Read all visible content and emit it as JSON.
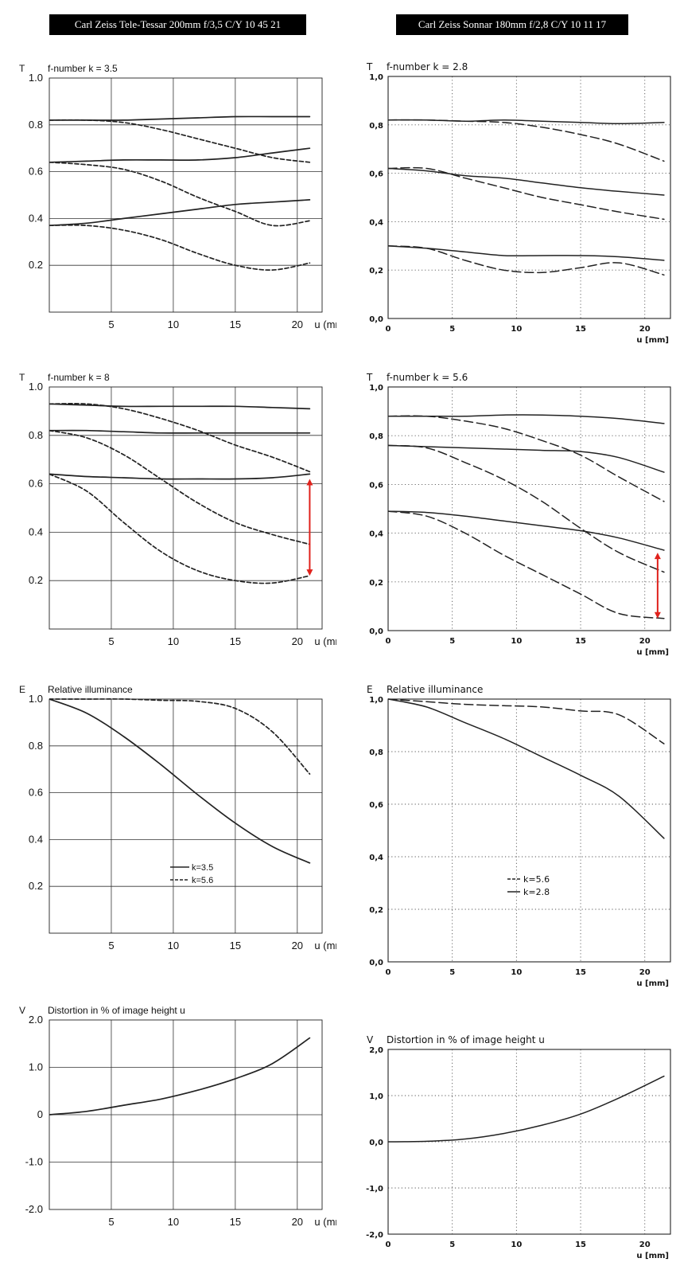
{
  "lens_titles": {
    "left": "Carl Zeiss Tele-Tessar 200mm f/3,5  C/Y  10 45 21",
    "right": "Carl Zeiss Sonnar 180mm f/2,8  C/Y  10 11 17"
  },
  "colors": {
    "line": "#222222",
    "grid_left": "#333333",
    "grid_right": "#555555",
    "annotation": "#e0221c"
  },
  "chart_data": [
    {
      "id": "mtf-tessar-k3.5",
      "type": "line",
      "symbol": "T",
      "title": "f-number k = 3.5",
      "xlabel": "u (mm)",
      "xlim": [
        0,
        22
      ],
      "ylim": [
        0,
        1.0
      ],
      "grid": "solid",
      "xticks": [
        "5",
        "10",
        "15",
        "20"
      ],
      "yticks": [
        "0.2",
        "0.4",
        "0.6",
        "0.8",
        "1.0"
      ],
      "series": [
        {
          "style": "solid",
          "x": [
            0,
            3,
            6,
            9,
            12,
            15,
            18,
            21
          ],
          "y": [
            0.82,
            0.82,
            0.82,
            0.825,
            0.83,
            0.835,
            0.835,
            0.835
          ]
        },
        {
          "style": "dashed",
          "x": [
            0,
            3,
            6,
            9,
            12,
            15,
            18,
            21
          ],
          "y": [
            0.82,
            0.82,
            0.81,
            0.78,
            0.74,
            0.7,
            0.66,
            0.64
          ]
        },
        {
          "style": "solid",
          "x": [
            0,
            3,
            6,
            9,
            12,
            15,
            18,
            21
          ],
          "y": [
            0.64,
            0.645,
            0.65,
            0.65,
            0.65,
            0.66,
            0.68,
            0.7
          ]
        },
        {
          "style": "dashed",
          "x": [
            0,
            3,
            6,
            9,
            12,
            15,
            18,
            21
          ],
          "y": [
            0.64,
            0.63,
            0.61,
            0.56,
            0.49,
            0.43,
            0.37,
            0.39
          ]
        },
        {
          "style": "solid",
          "x": [
            0,
            3,
            6,
            9,
            12,
            15,
            18,
            21
          ],
          "y": [
            0.37,
            0.38,
            0.4,
            0.42,
            0.44,
            0.46,
            0.47,
            0.48
          ]
        },
        {
          "style": "dashed",
          "x": [
            0,
            3,
            6,
            9,
            12,
            15,
            18,
            21
          ],
          "y": [
            0.37,
            0.37,
            0.35,
            0.31,
            0.25,
            0.2,
            0.18,
            0.21
          ]
        }
      ]
    },
    {
      "id": "mtf-sonnar-k2.8",
      "type": "line",
      "symbol": "T",
      "title": "f-number k = 2.8",
      "xlabel": "u [mm]",
      "xlim": [
        0,
        22
      ],
      "ylim": [
        0,
        1.0
      ],
      "grid": "dotted",
      "xticks": [
        "0",
        "5",
        "10",
        "15",
        "20"
      ],
      "yticks": [
        "0,0",
        "0,2",
        "0,4",
        "0,6",
        "0,8",
        "1,0"
      ],
      "series": [
        {
          "style": "solid",
          "x": [
            0,
            3,
            6,
            9,
            12,
            15,
            18,
            21.5
          ],
          "y": [
            0.82,
            0.82,
            0.815,
            0.82,
            0.815,
            0.81,
            0.805,
            0.81
          ]
        },
        {
          "style": "dashed",
          "x": [
            0,
            3,
            6,
            9,
            12,
            15,
            18,
            21.5
          ],
          "y": [
            0.82,
            0.82,
            0.815,
            0.81,
            0.79,
            0.76,
            0.72,
            0.65
          ]
        },
        {
          "style": "solid",
          "x": [
            0,
            3,
            6,
            9,
            12,
            15,
            18,
            21.5
          ],
          "y": [
            0.62,
            0.61,
            0.59,
            0.58,
            0.56,
            0.54,
            0.525,
            0.51
          ]
        },
        {
          "style": "dashed",
          "x": [
            0,
            3,
            6,
            9,
            12,
            15,
            18,
            21.5
          ],
          "y": [
            0.62,
            0.62,
            0.58,
            0.54,
            0.5,
            0.47,
            0.44,
            0.41
          ]
        },
        {
          "style": "solid",
          "x": [
            0,
            3,
            6,
            9,
            12,
            15,
            18,
            21.5
          ],
          "y": [
            0.3,
            0.29,
            0.275,
            0.26,
            0.26,
            0.26,
            0.255,
            0.24
          ]
        },
        {
          "style": "dashed",
          "x": [
            0,
            3,
            6,
            9,
            12,
            15,
            18,
            21.5
          ],
          "y": [
            0.3,
            0.29,
            0.24,
            0.2,
            0.19,
            0.21,
            0.23,
            0.18
          ]
        }
      ]
    },
    {
      "id": "mtf-tessar-k8",
      "type": "line",
      "symbol": "T",
      "title": "f-number k = 8",
      "xlabel": "u (mm)",
      "xlim": [
        0,
        22
      ],
      "ylim": [
        0,
        1.0
      ],
      "grid": "solid",
      "xticks": [
        "5",
        "10",
        "15",
        "20"
      ],
      "yticks": [
        "0.2",
        "0.4",
        "0.6",
        "0.8",
        "1.0"
      ],
      "annotation": {
        "x": 21,
        "y_from": 0.62,
        "y_to": 0.22
      },
      "series": [
        {
          "style": "solid",
          "x": [
            0,
            3,
            6,
            9,
            12,
            15,
            18,
            21
          ],
          "y": [
            0.93,
            0.925,
            0.92,
            0.92,
            0.92,
            0.92,
            0.915,
            0.91
          ]
        },
        {
          "style": "dashed",
          "x": [
            0,
            3,
            6,
            9,
            12,
            15,
            18,
            21
          ],
          "y": [
            0.93,
            0.93,
            0.91,
            0.87,
            0.82,
            0.76,
            0.71,
            0.65
          ]
        },
        {
          "style": "solid",
          "x": [
            0,
            3,
            6,
            9,
            12,
            15,
            18,
            21
          ],
          "y": [
            0.82,
            0.82,
            0.815,
            0.81,
            0.81,
            0.81,
            0.81,
            0.81
          ]
        },
        {
          "style": "dashed",
          "x": [
            0,
            3,
            6,
            9,
            12,
            15,
            18,
            21
          ],
          "y": [
            0.82,
            0.79,
            0.72,
            0.62,
            0.52,
            0.44,
            0.39,
            0.35
          ]
        },
        {
          "style": "solid",
          "x": [
            0,
            3,
            6,
            9,
            12,
            15,
            18,
            21
          ],
          "y": [
            0.64,
            0.63,
            0.625,
            0.62,
            0.62,
            0.62,
            0.625,
            0.64
          ]
        },
        {
          "style": "dashed",
          "x": [
            0,
            3,
            6,
            9,
            12,
            15,
            18,
            21
          ],
          "y": [
            0.64,
            0.57,
            0.44,
            0.32,
            0.24,
            0.2,
            0.19,
            0.22
          ]
        }
      ]
    },
    {
      "id": "mtf-sonnar-k5.6",
      "type": "line",
      "symbol": "T",
      "title": "f-number k = 5.6",
      "xlabel": "u [mm]",
      "xlim": [
        0,
        22
      ],
      "ylim": [
        0,
        1.0
      ],
      "grid": "dotted",
      "xticks": [
        "0",
        "5",
        "10",
        "15",
        "20"
      ],
      "yticks": [
        "0,0",
        "0,2",
        "0,4",
        "0,6",
        "0,8",
        "1,0"
      ],
      "annotation": {
        "x": 21,
        "y_from": 0.32,
        "y_to": 0.05
      },
      "series": [
        {
          "style": "solid",
          "x": [
            0,
            3,
            6,
            9,
            12,
            15,
            18,
            21.5
          ],
          "y": [
            0.88,
            0.88,
            0.88,
            0.885,
            0.885,
            0.88,
            0.87,
            0.85
          ]
        },
        {
          "style": "dashed",
          "x": [
            0,
            3,
            6,
            9,
            12,
            15,
            18,
            21.5
          ],
          "y": [
            0.88,
            0.88,
            0.86,
            0.83,
            0.78,
            0.72,
            0.63,
            0.53
          ]
        },
        {
          "style": "solid",
          "x": [
            0,
            3,
            6,
            9,
            12,
            15,
            18,
            21.5
          ],
          "y": [
            0.76,
            0.755,
            0.75,
            0.745,
            0.74,
            0.735,
            0.71,
            0.65
          ]
        },
        {
          "style": "dashed",
          "x": [
            0,
            3,
            6,
            9,
            12,
            15,
            18,
            21.5
          ],
          "y": [
            0.76,
            0.75,
            0.69,
            0.62,
            0.53,
            0.42,
            0.32,
            0.24
          ]
        },
        {
          "style": "solid",
          "x": [
            0,
            3,
            6,
            9,
            12,
            15,
            18,
            21.5
          ],
          "y": [
            0.49,
            0.485,
            0.47,
            0.45,
            0.43,
            0.41,
            0.38,
            0.33
          ]
        },
        {
          "style": "dashed",
          "x": [
            0,
            3,
            6,
            9,
            12,
            15,
            18,
            21.5
          ],
          "y": [
            0.49,
            0.47,
            0.4,
            0.31,
            0.23,
            0.15,
            0.07,
            0.05
          ]
        }
      ]
    },
    {
      "id": "illum-tessar",
      "type": "line",
      "symbol": "E",
      "title": "Relative illuminance",
      "xlabel": "u (mm)",
      "xlim": [
        0,
        22
      ],
      "ylim": [
        0,
        1.0
      ],
      "grid": "solid",
      "xticks": [
        "5",
        "10",
        "15",
        "20"
      ],
      "yticks": [
        "0.2",
        "0.4",
        "0.6",
        "0.8",
        "1.0"
      ],
      "legend": [
        "k=3.5",
        "k=5.6"
      ],
      "series": [
        {
          "name": "k=3.5",
          "style": "solid",
          "x": [
            0,
            3,
            6,
            9,
            12,
            15,
            18,
            21
          ],
          "y": [
            1.0,
            0.94,
            0.84,
            0.72,
            0.59,
            0.47,
            0.37,
            0.3
          ]
        },
        {
          "name": "k=5.6",
          "style": "dashed",
          "x": [
            0,
            3,
            6,
            9,
            12,
            15,
            18,
            21
          ],
          "y": [
            1.0,
            1.0,
            1.0,
            0.995,
            0.99,
            0.96,
            0.86,
            0.68
          ]
        }
      ]
    },
    {
      "id": "illum-sonnar",
      "type": "line",
      "symbol": "E",
      "title": "Relative illuminance",
      "xlabel": "u [mm]",
      "xlim": [
        0,
        22
      ],
      "ylim": [
        0,
        1.0
      ],
      "grid": "dotted",
      "xticks": [
        "0",
        "5",
        "10",
        "15",
        "20"
      ],
      "yticks": [
        "0,0",
        "0,2",
        "0,4",
        "0,6",
        "0,8",
        "1,0"
      ],
      "legend": [
        "k=5.6",
        "k=2.8"
      ],
      "series": [
        {
          "name": "k=5.6",
          "style": "dashed",
          "x": [
            0,
            3,
            6,
            9,
            12,
            15,
            18,
            21.5
          ],
          "y": [
            1.0,
            0.99,
            0.98,
            0.975,
            0.97,
            0.955,
            0.94,
            0.83
          ]
        },
        {
          "name": "k=2.8",
          "style": "solid",
          "x": [
            0,
            3,
            6,
            9,
            12,
            15,
            18,
            21.5
          ],
          "y": [
            1.0,
            0.97,
            0.91,
            0.85,
            0.78,
            0.71,
            0.63,
            0.47
          ]
        }
      ]
    },
    {
      "id": "dist-tessar",
      "type": "line",
      "symbol": "V",
      "title": "Distortion in % of image height u",
      "xlabel": "u (mm)",
      "xlim": [
        0,
        22
      ],
      "ylim": [
        -2.0,
        2.0
      ],
      "grid": "solid",
      "xticks": [
        "5",
        "10",
        "15",
        "20"
      ],
      "yticks": [
        "-2.0",
        "-1.0",
        "0",
        "1.0",
        "2.0"
      ],
      "series": [
        {
          "style": "solid",
          "x": [
            0,
            3,
            6,
            9,
            12,
            15,
            18,
            21
          ],
          "y": [
            0,
            0.07,
            0.2,
            0.33,
            0.52,
            0.76,
            1.08,
            1.62
          ]
        }
      ]
    },
    {
      "id": "dist-sonnar",
      "type": "line",
      "symbol": "V",
      "title": "Distortion in % of image height u",
      "xlabel": "u [mm]",
      "xlim": [
        0,
        22
      ],
      "ylim": [
        -2.0,
        2.0
      ],
      "grid": "dotted",
      "xticks": [
        "0",
        "5",
        "10",
        "15",
        "20"
      ],
      "yticks": [
        "-2,0",
        "-1,0",
        "0,0",
        "1,0",
        "2,0"
      ],
      "series": [
        {
          "style": "solid",
          "x": [
            0,
            3,
            6,
            9,
            12,
            15,
            18,
            21.5
          ],
          "y": [
            0,
            0.01,
            0.06,
            0.18,
            0.36,
            0.6,
            0.95,
            1.42
          ]
        }
      ]
    }
  ]
}
